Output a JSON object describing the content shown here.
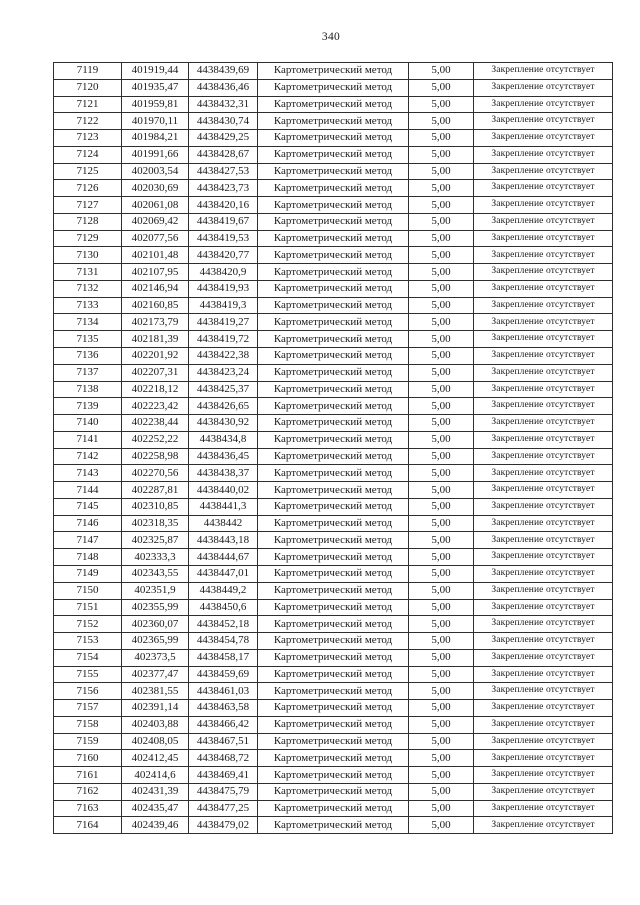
{
  "page": {
    "number": "340"
  },
  "table": {
    "columns": [
      "point_id",
      "coordinate_x",
      "coordinate_y",
      "method",
      "precision_m",
      "fixation"
    ],
    "method_label": "Картометрический метод",
    "precision_label": "5,00",
    "fixation_label": "Закрепление отсутствует",
    "rows": [
      [
        "7119",
        "401919,44",
        "4438439,69",
        "Картометрический метод",
        "5,00",
        "Закрепление отсутствует"
      ],
      [
        "7120",
        "401935,47",
        "4438436,46",
        "Картометрический метод",
        "5,00",
        "Закрепление отсутствует"
      ],
      [
        "7121",
        "401959,81",
        "4438432,31",
        "Картометрический метод",
        "5,00",
        "Закрепление отсутствует"
      ],
      [
        "7122",
        "401970,11",
        "4438430,74",
        "Картометрический метод",
        "5,00",
        "Закрепление отсутствует"
      ],
      [
        "7123",
        "401984,21",
        "4438429,25",
        "Картометрический метод",
        "5,00",
        "Закрепление отсутствует"
      ],
      [
        "7124",
        "401991,66",
        "4438428,67",
        "Картометрический метод",
        "5,00",
        "Закрепление отсутствует"
      ],
      [
        "7125",
        "402003,54",
        "4438427,53",
        "Картометрический метод",
        "5,00",
        "Закрепление отсутствует"
      ],
      [
        "7126",
        "402030,69",
        "4438423,73",
        "Картометрический метод",
        "5,00",
        "Закрепление отсутствует"
      ],
      [
        "7127",
        "402061,08",
        "4438420,16",
        "Картометрический метод",
        "5,00",
        "Закрепление отсутствует"
      ],
      [
        "7128",
        "402069,42",
        "4438419,67",
        "Картометрический метод",
        "5,00",
        "Закрепление отсутствует"
      ],
      [
        "7129",
        "402077,56",
        "4438419,53",
        "Картометрический метод",
        "5,00",
        "Закрепление отсутствует"
      ],
      [
        "7130",
        "402101,48",
        "4438420,77",
        "Картометрический метод",
        "5,00",
        "Закрепление отсутствует"
      ],
      [
        "7131",
        "402107,95",
        "4438420,9",
        "Картометрический метод",
        "5,00",
        "Закрепление отсутствует"
      ],
      [
        "7132",
        "402146,94",
        "4438419,93",
        "Картометрический метод",
        "5,00",
        "Закрепление отсутствует"
      ],
      [
        "7133",
        "402160,85",
        "4438419,3",
        "Картометрический метод",
        "5,00",
        "Закрепление отсутствует"
      ],
      [
        "7134",
        "402173,79",
        "4438419,27",
        "Картометрический метод",
        "5,00",
        "Закрепление отсутствует"
      ],
      [
        "7135",
        "402181,39",
        "4438419,72",
        "Картометрический метод",
        "5,00",
        "Закрепление отсутствует"
      ],
      [
        "7136",
        "402201,92",
        "4438422,38",
        "Картометрический метод",
        "5,00",
        "Закрепление отсутствует"
      ],
      [
        "7137",
        "402207,31",
        "4438423,24",
        "Картометрический метод",
        "5,00",
        "Закрепление отсутствует"
      ],
      [
        "7138",
        "402218,12",
        "4438425,37",
        "Картометрический метод",
        "5,00",
        "Закрепление отсутствует"
      ],
      [
        "7139",
        "402223,42",
        "4438426,65",
        "Картометрический метод",
        "5,00",
        "Закрепление отсутствует"
      ],
      [
        "7140",
        "402238,44",
        "4438430,92",
        "Картометрический метод",
        "5,00",
        "Закрепление отсутствует"
      ],
      [
        "7141",
        "402252,22",
        "4438434,8",
        "Картометрический метод",
        "5,00",
        "Закрепление отсутствует"
      ],
      [
        "7142",
        "402258,98",
        "4438436,45",
        "Картометрический метод",
        "5,00",
        "Закрепление отсутствует"
      ],
      [
        "7143",
        "402270,56",
        "4438438,37",
        "Картометрический метод",
        "5,00",
        "Закрепление отсутствует"
      ],
      [
        "7144",
        "402287,81",
        "4438440,02",
        "Картометрический метод",
        "5,00",
        "Закрепление отсутствует"
      ],
      [
        "7145",
        "402310,85",
        "4438441,3",
        "Картометрический метод",
        "5,00",
        "Закрепление отсутствует"
      ],
      [
        "7146",
        "402318,35",
        "4438442",
        "Картометрический метод",
        "5,00",
        "Закрепление отсутствует"
      ],
      [
        "7147",
        "402325,87",
        "4438443,18",
        "Картометрический метод",
        "5,00",
        "Закрепление отсутствует"
      ],
      [
        "7148",
        "402333,3",
        "4438444,67",
        "Картометрический метод",
        "5,00",
        "Закрепление отсутствует"
      ],
      [
        "7149",
        "402343,55",
        "4438447,01",
        "Картометрический метод",
        "5,00",
        "Закрепление отсутствует"
      ],
      [
        "7150",
        "402351,9",
        "4438449,2",
        "Картометрический метод",
        "5,00",
        "Закрепление отсутствует"
      ],
      [
        "7151",
        "402355,99",
        "4438450,6",
        "Картометрический метод",
        "5,00",
        "Закрепление отсутствует"
      ],
      [
        "7152",
        "402360,07",
        "4438452,18",
        "Картометрический метод",
        "5,00",
        "Закрепление отсутствует"
      ],
      [
        "7153",
        "402365,99",
        "4438454,78",
        "Картометрический метод",
        "5,00",
        "Закрепление отсутствует"
      ],
      [
        "7154",
        "402373,5",
        "4438458,17",
        "Картометрический метод",
        "5,00",
        "Закрепление отсутствует"
      ],
      [
        "7155",
        "402377,47",
        "4438459,69",
        "Картометрический метод",
        "5,00",
        "Закрепление отсутствует"
      ],
      [
        "7156",
        "402381,55",
        "4438461,03",
        "Картометрический метод",
        "5,00",
        "Закрепление отсутствует"
      ],
      [
        "7157",
        "402391,14",
        "4438463,58",
        "Картометрический метод",
        "5,00",
        "Закрепление отсутствует"
      ],
      [
        "7158",
        "402403,88",
        "4438466,42",
        "Картометрический метод",
        "5,00",
        "Закрепление отсутствует"
      ],
      [
        "7159",
        "402408,05",
        "4438467,51",
        "Картометрический метод",
        "5,00",
        "Закрепление отсутствует"
      ],
      [
        "7160",
        "402412,45",
        "4438468,72",
        "Картометрический метод",
        "5,00",
        "Закрепление отсутствует"
      ],
      [
        "7161",
        "402414,6",
        "4438469,41",
        "Картометрический метод",
        "5,00",
        "Закрепление отсутствует"
      ],
      [
        "7162",
        "402431,39",
        "4438475,79",
        "Картометрический метод",
        "5,00",
        "Закрепление отсутствует"
      ],
      [
        "7163",
        "402435,47",
        "4438477,25",
        "Картометрический метод",
        "5,00",
        "Закрепление отсутствует"
      ],
      [
        "7164",
        "402439,46",
        "4438479,02",
        "Картометрический метод",
        "5,00",
        "Закрепление отсутствует"
      ]
    ]
  }
}
